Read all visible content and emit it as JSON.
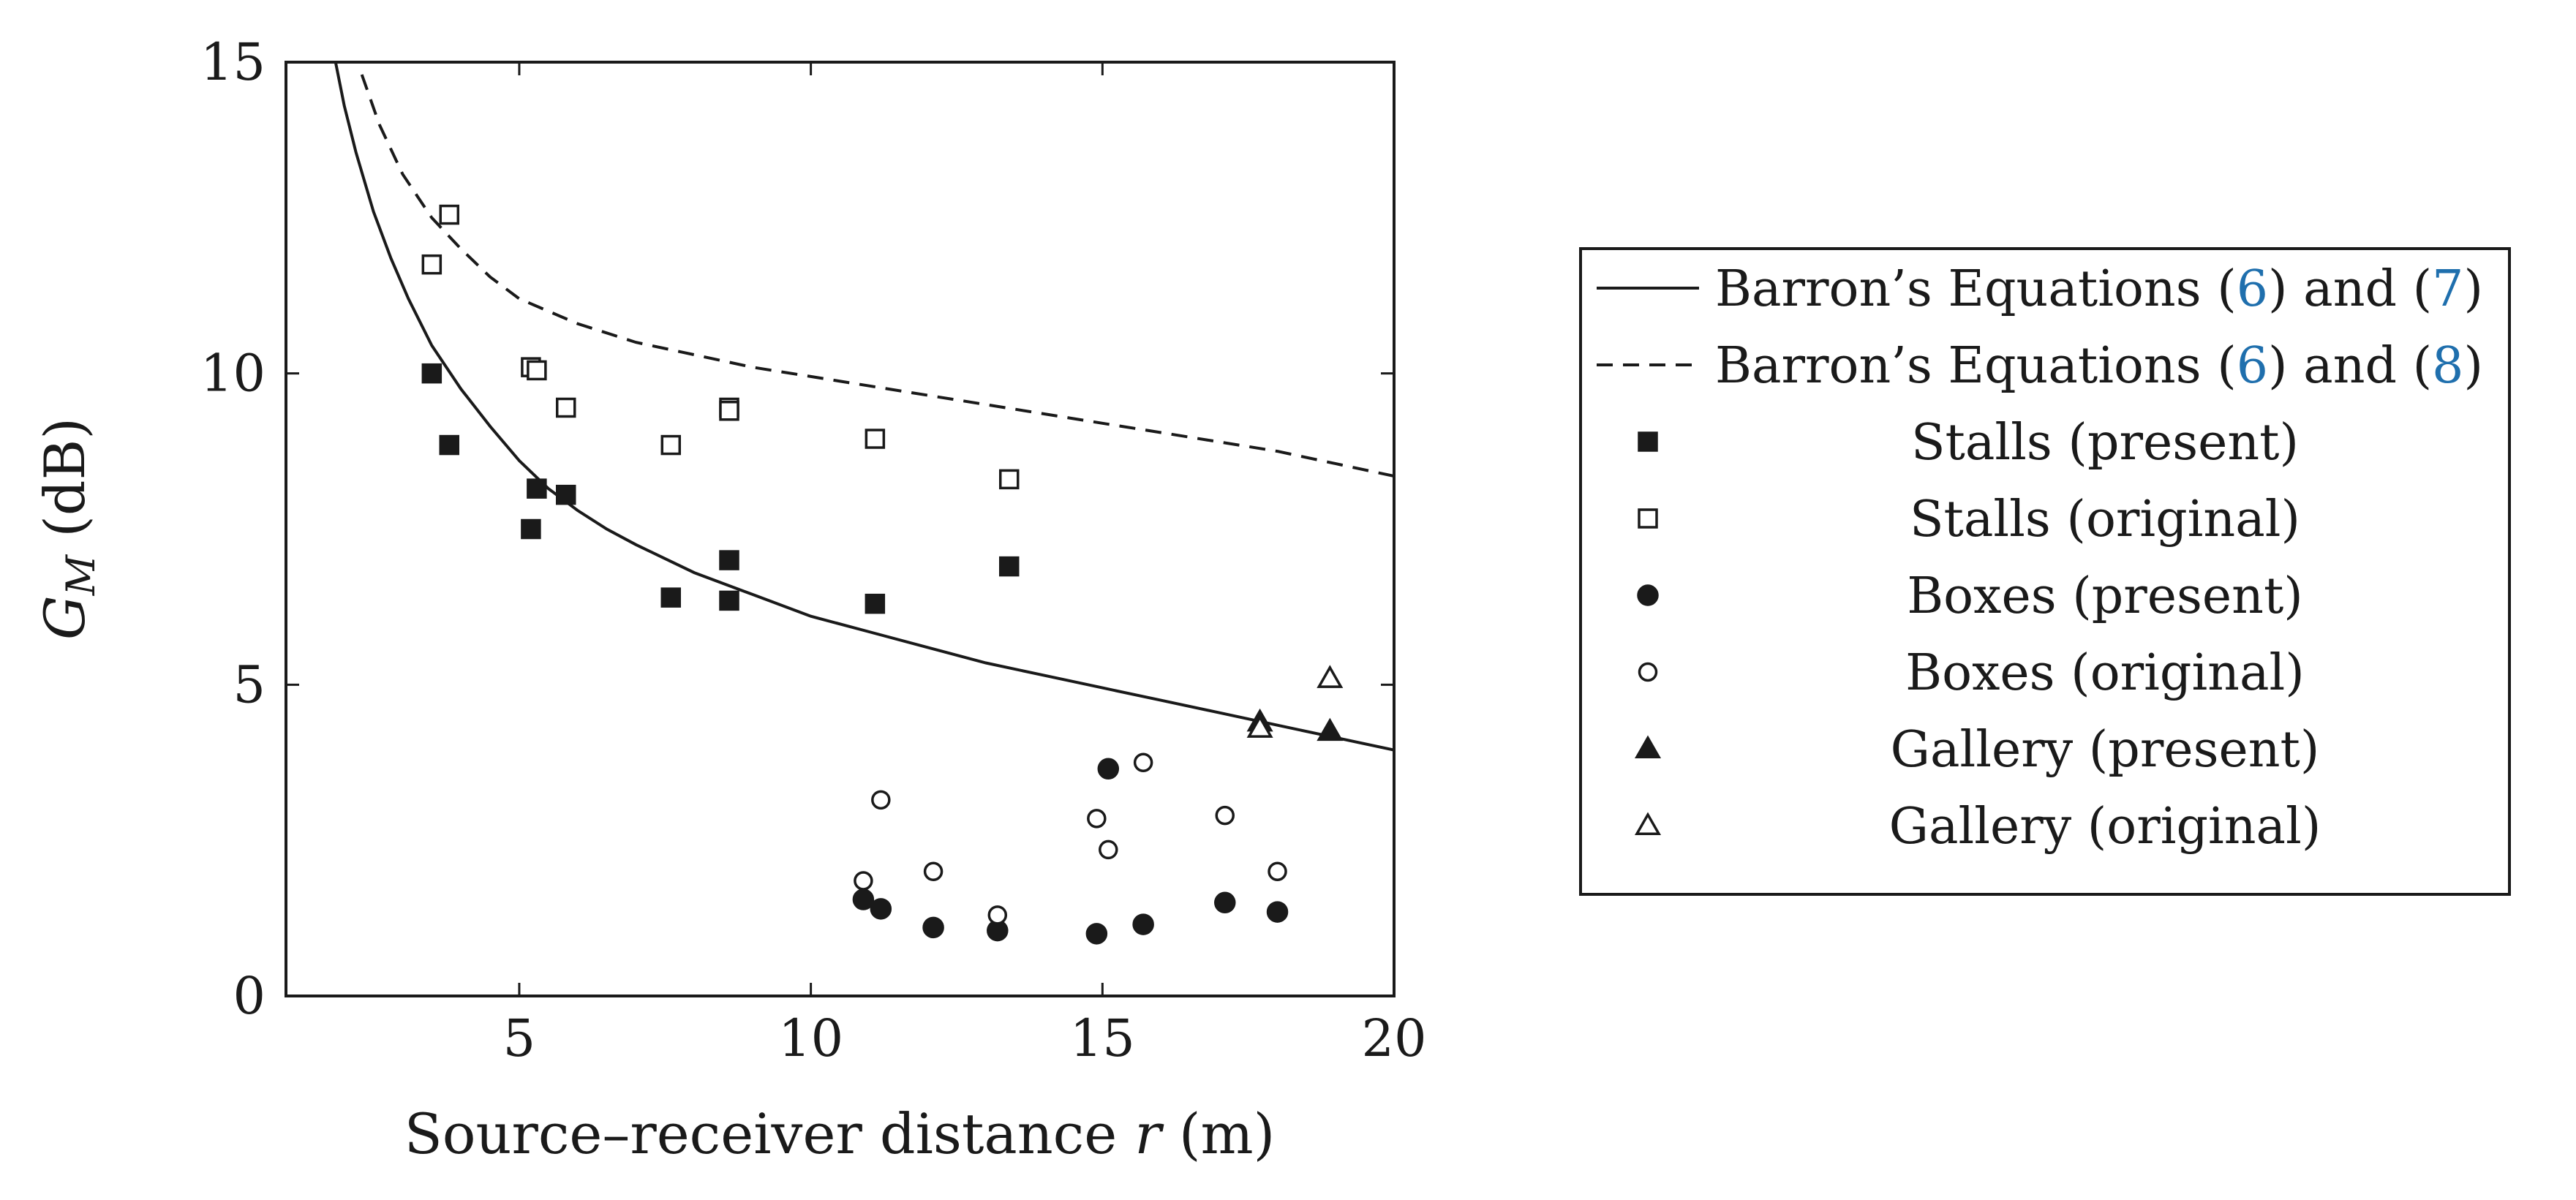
{
  "chart_data": {
    "type": "scatter",
    "xlabel": {
      "prefix": "Source–receiver distance ",
      "variable": "r",
      "suffix": " (m)"
    },
    "ylabel": {
      "base": "G",
      "subscript": "M",
      "suffix": " (dB)"
    },
    "xlim": [
      1,
      20
    ],
    "ylim": [
      0,
      15
    ],
    "xticks": [
      5,
      10,
      15,
      20
    ],
    "yticks": [
      0,
      5,
      10,
      15
    ],
    "legend_position": "right",
    "curves": [
      {
        "name": "Barron’s Equations (6) and (7)",
        "style": "solid",
        "label_parts": [
          "Barron’s Equations (",
          "6",
          ") and (",
          "7",
          ")"
        ],
        "points": [
          [
            1.85,
            15.0
          ],
          [
            2.0,
            14.3
          ],
          [
            2.2,
            13.55
          ],
          [
            2.5,
            12.6
          ],
          [
            2.8,
            11.85
          ],
          [
            3.1,
            11.2
          ],
          [
            3.5,
            10.45
          ],
          [
            4.0,
            9.75
          ],
          [
            4.5,
            9.15
          ],
          [
            5.0,
            8.6
          ],
          [
            5.5,
            8.15
          ],
          [
            6.0,
            7.8
          ],
          [
            6.5,
            7.5
          ],
          [
            7.0,
            7.25
          ],
          [
            8.0,
            6.8
          ],
          [
            9.0,
            6.45
          ],
          [
            10.0,
            6.1
          ],
          [
            11.0,
            5.85
          ],
          [
            12.0,
            5.6
          ],
          [
            13.0,
            5.35
          ],
          [
            14.0,
            5.15
          ],
          [
            15.0,
            4.95
          ],
          [
            16.0,
            4.75
          ],
          [
            17.0,
            4.55
          ],
          [
            18.0,
            4.35
          ],
          [
            19.0,
            4.15
          ],
          [
            20.0,
            3.95
          ]
        ]
      },
      {
        "name": "Barron’s Equations (6) and (8)",
        "style": "dashed",
        "label_parts": [
          "Barron’s Equations (",
          "6",
          ") and (",
          "8",
          ")"
        ],
        "points": [
          [
            2.3,
            14.8
          ],
          [
            2.6,
            14.0
          ],
          [
            3.0,
            13.2
          ],
          [
            3.5,
            12.5
          ],
          [
            4.0,
            12.0
          ],
          [
            4.5,
            11.55
          ],
          [
            5.0,
            11.2
          ],
          [
            6.0,
            10.8
          ],
          [
            7.0,
            10.5
          ],
          [
            8.0,
            10.3
          ],
          [
            9.0,
            10.1
          ],
          [
            10.0,
            9.95
          ],
          [
            11.0,
            9.8
          ],
          [
            12.0,
            9.65
          ],
          [
            13.0,
            9.5
          ],
          [
            14.0,
            9.35
          ],
          [
            15.0,
            9.2
          ],
          [
            16.0,
            9.05
          ],
          [
            17.0,
            8.9
          ],
          [
            18.0,
            8.75
          ],
          [
            19.0,
            8.55
          ],
          [
            20.0,
            8.35
          ]
        ]
      }
    ],
    "series": [
      {
        "name": "Stalls (present)",
        "marker": "square",
        "filled": true,
        "points": [
          [
            3.5,
            10.0
          ],
          [
            3.8,
            8.85
          ],
          [
            5.2,
            7.5
          ],
          [
            5.3,
            8.15
          ],
          [
            5.8,
            8.05
          ],
          [
            7.6,
            6.4
          ],
          [
            8.6,
            6.35
          ],
          [
            8.6,
            7.0
          ],
          [
            11.1,
            6.3
          ],
          [
            13.4,
            6.9
          ]
        ]
      },
      {
        "name": "Stalls (original)",
        "marker": "square",
        "filled": false,
        "points": [
          [
            3.5,
            11.75
          ],
          [
            3.8,
            12.55
          ],
          [
            5.2,
            10.1
          ],
          [
            5.3,
            10.05
          ],
          [
            5.8,
            9.45
          ],
          [
            7.6,
            8.85
          ],
          [
            8.6,
            9.45
          ],
          [
            8.6,
            9.4
          ],
          [
            11.1,
            8.95
          ],
          [
            13.4,
            8.3
          ]
        ]
      },
      {
        "name": "Boxes (present)",
        "marker": "circle",
        "filled": true,
        "points": [
          [
            10.9,
            1.55
          ],
          [
            11.2,
            1.4
          ],
          [
            12.1,
            1.1
          ],
          [
            13.2,
            1.05
          ],
          [
            14.9,
            1.0
          ],
          [
            15.1,
            3.65
          ],
          [
            15.7,
            1.15
          ],
          [
            17.1,
            1.5
          ],
          [
            18.0,
            1.35
          ]
        ]
      },
      {
        "name": "Boxes (original)",
        "marker": "circle",
        "filled": false,
        "points": [
          [
            10.9,
            1.85
          ],
          [
            11.2,
            3.15
          ],
          [
            12.1,
            2.0
          ],
          [
            13.2,
            1.3
          ],
          [
            14.9,
            2.85
          ],
          [
            15.1,
            2.35
          ],
          [
            15.7,
            3.75
          ],
          [
            17.1,
            2.9
          ],
          [
            18.0,
            2.0
          ]
        ]
      },
      {
        "name": "Gallery (present)",
        "marker": "triangle",
        "filled": true,
        "points": [
          [
            17.7,
            4.4
          ],
          [
            18.9,
            4.25
          ]
        ]
      },
      {
        "name": "Gallery (original)",
        "marker": "triangle",
        "filled": false,
        "points": [
          [
            17.7,
            4.3
          ],
          [
            18.9,
            5.1
          ]
        ]
      }
    ],
    "colors": {
      "ink": "#1a1a1a",
      "link": "#1f6fad",
      "background": "#ffffff"
    }
  }
}
